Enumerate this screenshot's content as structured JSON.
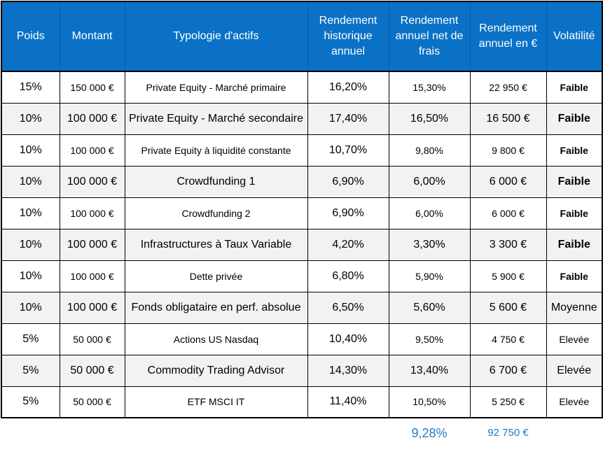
{
  "headers": {
    "poids": "Poids",
    "montant": "Montant",
    "typologie": "Typologie d'actifs",
    "rend_hist": "Rendement historique annuel",
    "rend_net": "Rendement annuel net de frais",
    "rend_eur": "Rendement annuel en €",
    "volatilite": "Volatilité"
  },
  "rows": [
    {
      "poids": "15%",
      "montant": "150 000 €",
      "typologie": "Private Equity - Marché primaire",
      "rend_hist": "16,20%",
      "rend_net": "15,30%",
      "rend_eur": "22 950 €",
      "volatilite": "Faible"
    },
    {
      "poids": "10%",
      "montant": "100 000 €",
      "typologie": "Private Equity - Marché secondaire",
      "rend_hist": "17,40%",
      "rend_net": "16,50%",
      "rend_eur": "16 500 €",
      "volatilite": "Faible"
    },
    {
      "poids": "10%",
      "montant": "100 000 €",
      "typologie": "Private Equity à liquidité constante",
      "rend_hist": "10,70%",
      "rend_net": "9,80%",
      "rend_eur": "9 800 €",
      "volatilite": "Faible"
    },
    {
      "poids": "10%",
      "montant": "100 000 €",
      "typologie": "Crowdfunding 1",
      "rend_hist": "6,90%",
      "rend_net": "6,00%",
      "rend_eur": "6 000 €",
      "volatilite": "Faible"
    },
    {
      "poids": "10%",
      "montant": "100 000 €",
      "typologie": "Crowdfunding 2",
      "rend_hist": "6,90%",
      "rend_net": "6,00%",
      "rend_eur": "6 000 €",
      "volatilite": "Faible"
    },
    {
      "poids": "10%",
      "montant": "100 000 €",
      "typologie": "Infrastructures à Taux Variable",
      "rend_hist": "4,20%",
      "rend_net": "3,30%",
      "rend_eur": "3 300 €",
      "volatilite": "Faible"
    },
    {
      "poids": "10%",
      "montant": "100 000 €",
      "typologie": "Dette privée",
      "rend_hist": "6,80%",
      "rend_net": "5,90%",
      "rend_eur": "5 900 €",
      "volatilite": "Faible"
    },
    {
      "poids": "10%",
      "montant": "100 000 €",
      "typologie": "Fonds obligataire en perf. absolue",
      "rend_hist": "6,50%",
      "rend_net": "5,60%",
      "rend_eur": "5 600 €",
      "volatilite": "Moyenne"
    },
    {
      "poids": "5%",
      "montant": "50 000 €",
      "typologie": "Actions US Nasdaq",
      "rend_hist": "10,40%",
      "rend_net": "9,50%",
      "rend_eur": "4 750 €",
      "volatilite": "Elevée"
    },
    {
      "poids": "5%",
      "montant": "50 000 €",
      "typologie": "Commodity Trading Advisor",
      "rend_hist": "14,30%",
      "rend_net": "13,40%",
      "rend_eur": "6 700 €",
      "volatilite": "Elevée"
    },
    {
      "poids": "5%",
      "montant": "50 000 €",
      "typologie": "ETF MSCI IT",
      "rend_hist": "11,40%",
      "rend_net": "10,50%",
      "rend_eur": "5 250 €",
      "volatilite": "Elevée"
    }
  ],
  "totals": {
    "rend_net": "9,28%",
    "rend_eur": "92 750 €"
  },
  "colors": {
    "header_bg": "#0a71c6",
    "header_text": "#ffffff",
    "totals_text": "#1f7bc8",
    "stripe": "#f2f2f2"
  }
}
